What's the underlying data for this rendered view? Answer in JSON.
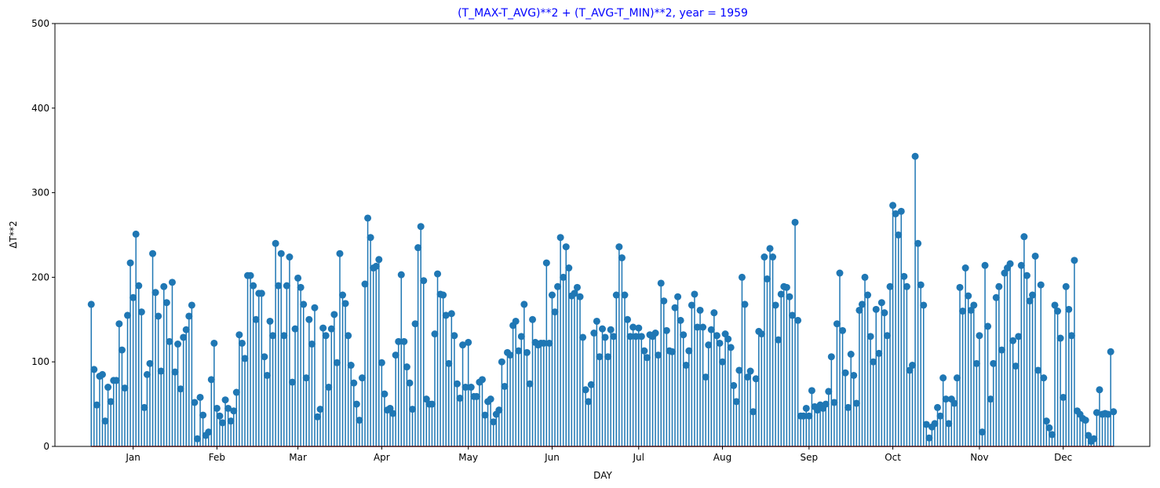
{
  "chart_data": {
    "type": "stem",
    "title": "(T_MAX-T_AVG)**2 + (T_AVG-T_MIN)**2, year = 1959",
    "xlabel": "DAY",
    "ylabel": "ΔT**2",
    "ylim": [
      0,
      500
    ],
    "yticks": [
      0,
      100,
      200,
      300,
      400,
      500
    ],
    "xlim_days": [
      -12,
      380
    ],
    "month_ticks": [
      {
        "label": "Jan",
        "day": 16
      },
      {
        "label": "Feb",
        "day": 46
      },
      {
        "label": "Mar",
        "day": 75
      },
      {
        "label": "Apr",
        "day": 105
      },
      {
        "label": "May",
        "day": 136
      },
      {
        "label": "Jun",
        "day": 166
      },
      {
        "label": "Jul",
        "day": 197
      },
      {
        "label": "Aug",
        "day": 227
      },
      {
        "label": "Sep",
        "day": 258
      },
      {
        "label": "Oct",
        "day": 288
      },
      {
        "label": "Nov",
        "day": 319
      },
      {
        "label": "Dec",
        "day": 349
      }
    ],
    "colors": {
      "stem": "#1f77b4",
      "marker": "#1f77b4",
      "baseline": "#d62728",
      "title": "#0000ff"
    },
    "values": [
      168,
      91,
      49,
      83,
      85,
      30,
      70,
      53,
      78,
      78,
      145,
      114,
      69,
      155,
      217,
      176,
      251,
      190,
      159,
      46,
      85,
      98,
      228,
      182,
      154,
      89,
      189,
      170,
      124,
      194,
      88,
      121,
      68,
      129,
      138,
      154,
      167,
      52,
      9,
      58,
      37,
      13,
      17,
      79,
      122,
      45,
      36,
      28,
      55,
      45,
      30,
      42,
      64,
      132,
      122,
      104,
      202,
      202,
      190,
      150,
      181,
      181,
      106,
      84,
      148,
      131,
      240,
      190,
      228,
      131,
      190,
      224,
      76,
      139,
      199,
      188,
      168,
      81,
      150,
      121,
      164,
      35,
      44,
      140,
      131,
      70,
      139,
      156,
      99,
      228,
      179,
      169,
      131,
      96,
      75,
      50,
      31,
      81,
      192,
      270,
      247,
      211,
      213,
      221,
      99,
      62,
      43,
      45,
      39,
      108,
      124,
      203,
      124,
      94,
      75,
      44,
      145,
      235,
      260,
      196,
      56,
      50,
      50,
      133,
      204,
      180,
      179,
      155,
      98,
      157,
      131,
      74,
      57,
      120,
      70,
      123,
      70,
      59,
      59,
      76,
      79,
      37,
      53,
      56,
      29,
      38,
      43,
      100,
      71,
      111,
      108,
      143,
      148,
      113,
      130,
      168,
      111,
      74,
      150,
      123,
      120,
      122,
      122,
      217,
      122,
      179,
      159,
      189,
      247,
      200,
      236,
      211,
      178,
      181,
      188,
      177,
      129,
      67,
      53,
      73,
      134,
      148,
      106,
      139,
      129,
      106,
      138,
      130,
      179,
      236,
      223,
      179,
      150,
      130,
      141,
      130,
      140,
      130,
      113,
      105,
      132,
      130,
      134,
      108,
      193,
      172,
      137,
      113,
      112,
      164,
      177,
      149,
      132,
      96,
      113,
      167,
      180,
      141,
      161,
      141,
      82,
      120,
      138,
      158,
      131,
      122,
      100,
      133,
      127,
      117,
      72,
      53,
      90,
      200,
      168,
      82,
      89,
      41,
      80,
      136,
      133,
      224,
      198,
      234,
      224,
      167,
      126,
      180,
      189,
      188,
      177,
      155,
      265,
      149,
      36,
      36,
      45,
      36,
      66,
      47,
      43,
      49,
      45,
      50,
      65,
      106,
      52,
      145,
      205,
      137,
      87,
      46,
      109,
      84,
      51,
      161,
      168,
      200,
      179,
      130,
      100,
      162,
      110,
      170,
      158,
      131,
      189,
      285,
      275,
      250,
      278,
      201,
      189,
      90,
      96,
      343,
      240,
      191,
      167,
      26,
      10,
      23,
      27,
      46,
      36,
      81,
      56,
      27,
      56,
      51,
      81,
      188,
      160,
      211,
      178,
      161,
      167,
      98,
      131,
      17,
      214,
      142,
      56,
      98,
      176,
      189,
      114,
      205,
      211,
      216,
      125,
      95,
      130,
      214,
      248,
      202,
      172,
      179,
      225,
      90,
      191,
      81,
      30,
      22,
      14,
      167,
      160,
      128,
      58,
      189,
      162,
      131,
      220,
      42,
      38,
      33,
      31,
      13,
      6,
      9,
      40,
      67,
      38,
      39,
      38,
      112,
      41
    ]
  }
}
